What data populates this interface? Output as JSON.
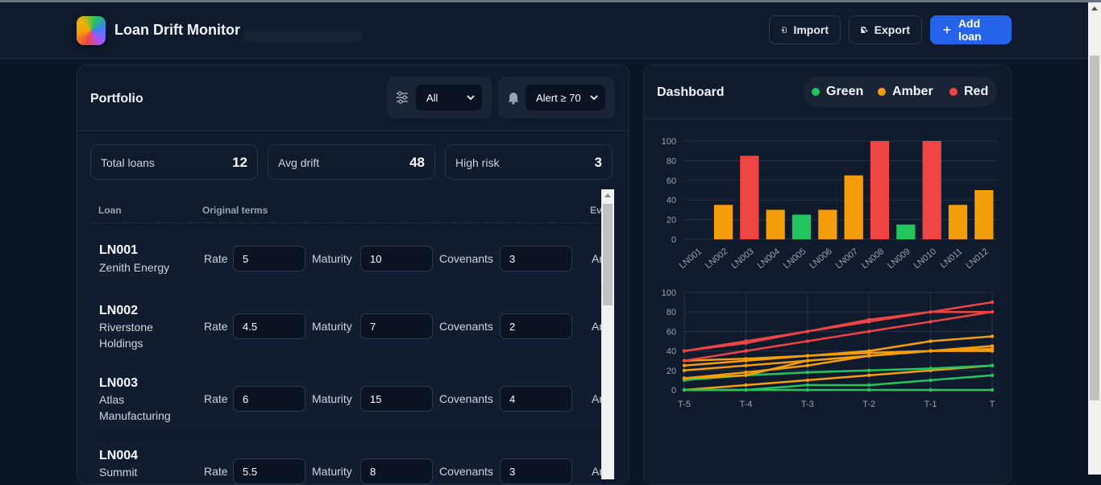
{
  "app": {
    "title": "Loan Drift Monitor"
  },
  "toolbar": {
    "import_label": "Import",
    "export_label": "Export",
    "add_label": "Add loan"
  },
  "portfolio": {
    "title": "Portfolio",
    "filter_value": "All",
    "alert_value": "Alert ≥ 70",
    "stats": [
      {
        "label": "Total loans",
        "value": "12"
      },
      {
        "label": "Avg drift",
        "value": "48"
      },
      {
        "label": "High risk",
        "value": "3"
      }
    ],
    "columns": [
      "Loan",
      "Original terms",
      "Ev"
    ],
    "field_labels": {
      "rate": "Rate",
      "maturity": "Maturity",
      "covenants": "Covenants",
      "cut": "Ar"
    },
    "rows": [
      {
        "id": "LN001",
        "name": "Zenith Energy",
        "rate": "5",
        "maturity": "10",
        "covenants": "3"
      },
      {
        "id": "LN002",
        "name": "Riverstone Holdings",
        "rate": "4.5",
        "maturity": "7",
        "covenants": "2"
      },
      {
        "id": "LN003",
        "name": "Atlas Manufacturing",
        "rate": "6",
        "maturity": "15",
        "covenants": "4"
      },
      {
        "id": "LN004",
        "name": "Summit",
        "rate": "5.5",
        "maturity": "8",
        "covenants": "3"
      }
    ]
  },
  "dashboard": {
    "title": "Dashboard",
    "legend": [
      {
        "label": "Green",
        "color": "#22c55e"
      },
      {
        "label": "Amber",
        "color": "#f59e0b"
      },
      {
        "label": "Red",
        "color": "#ef4444"
      }
    ]
  },
  "chart_data": [
    {
      "type": "bar",
      "categories": [
        "LN001",
        "LN002",
        "LN003",
        "LN004",
        "LN005",
        "LN006",
        "LN007",
        "LN008",
        "LN009",
        "LN010",
        "LN011",
        "LN012"
      ],
      "values": [
        0,
        35,
        85,
        30,
        25,
        30,
        65,
        100,
        15,
        100,
        35,
        50
      ],
      "colors": [
        "#f59e0b",
        "#f59e0b",
        "#ef4444",
        "#f59e0b",
        "#22c55e",
        "#f59e0b",
        "#f59e0b",
        "#ef4444",
        "#22c55e",
        "#ef4444",
        "#f59e0b",
        "#f59e0b"
      ],
      "ylim": [
        0,
        100
      ],
      "yticks": [
        0,
        20,
        40,
        60,
        80,
        100
      ],
      "grid": true
    },
    {
      "type": "line",
      "x": [
        "T-5",
        "T-4",
        "T-3",
        "T-2",
        "T-1",
        "T"
      ],
      "ylim": [
        0,
        100
      ],
      "yticks": [
        0,
        20,
        40,
        60,
        80,
        100
      ],
      "grid": true,
      "series": [
        {
          "color": "#f59e0b",
          "values": [
            0,
            5,
            10,
            15,
            20,
            25
          ]
        },
        {
          "color": "#f59e0b",
          "values": [
            25,
            30,
            35,
            40,
            50,
            55
          ]
        },
        {
          "color": "#ef4444",
          "values": [
            40,
            50,
            60,
            70,
            80,
            80
          ]
        },
        {
          "color": "#f59e0b",
          "values": [
            20,
            25,
            30,
            35,
            40,
            40
          ]
        },
        {
          "color": "#22c55e",
          "values": [
            10,
            15,
            18,
            20,
            22,
            25
          ]
        },
        {
          "color": "#f59e0b",
          "values": [
            12,
            15,
            30,
            35,
            40,
            45
          ]
        },
        {
          "color": "#f59e0b",
          "values": [
            30,
            32,
            35,
            38,
            40,
            42
          ]
        },
        {
          "color": "#ef4444",
          "values": [
            40,
            48,
            60,
            72,
            80,
            90
          ]
        },
        {
          "color": "#22c55e",
          "values": [
            0,
            0,
            5,
            5,
            10,
            15
          ]
        },
        {
          "color": "#ef4444",
          "values": [
            30,
            40,
            50,
            60,
            70,
            80
          ]
        },
        {
          "color": "#f59e0b",
          "values": [
            12,
            18,
            25,
            35,
            40,
            45
          ]
        },
        {
          "color": "#22c55e",
          "values": [
            0,
            0,
            0,
            0,
            0,
            0
          ]
        }
      ]
    }
  ]
}
